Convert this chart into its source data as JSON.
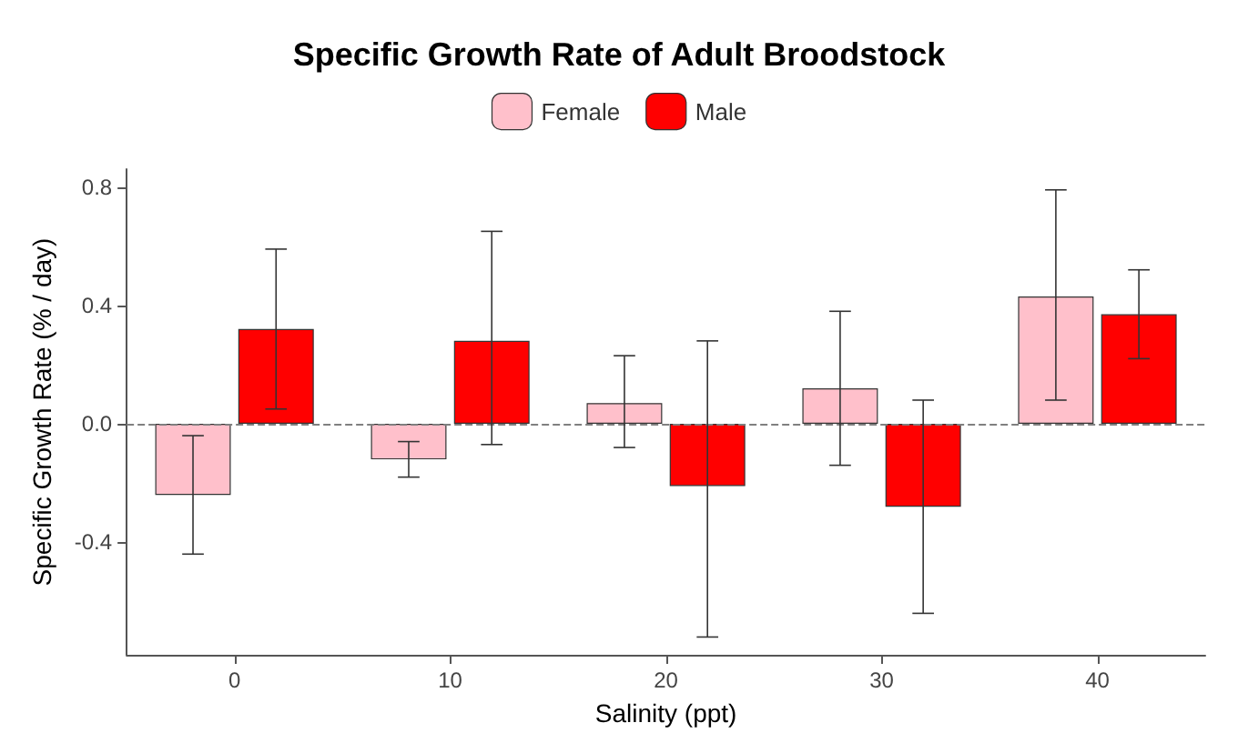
{
  "chart_data": {
    "type": "bar",
    "title": "Specific Growth Rate of Adult Broodstock",
    "xlabel": "Salinity (ppt)",
    "ylabel": "Specific Growth Rate (% / day)",
    "categories": [
      "0",
      "10",
      "20",
      "30",
      "40"
    ],
    "series": [
      {
        "name": "Female",
        "color": "#ffc0cb",
        "values": [
          -0.24,
          -0.12,
          0.07,
          0.12,
          0.43
        ],
        "errors": [
          [
            -0.44,
            -0.04
          ],
          [
            -0.18,
            -0.06
          ],
          [
            -0.08,
            0.23
          ],
          [
            -0.14,
            0.38
          ],
          [
            0.08,
            0.79
          ]
        ]
      },
      {
        "name": "Male",
        "color": "#ff0000",
        "values": [
          0.32,
          0.28,
          -0.21,
          -0.28,
          0.37
        ],
        "errors": [
          [
            0.05,
            0.59
          ],
          [
            -0.07,
            0.65
          ],
          [
            -0.72,
            0.28
          ],
          [
            -0.64,
            0.08
          ],
          [
            0.22,
            0.52
          ]
        ]
      }
    ],
    "ylim": [
      -0.78,
      0.86
    ],
    "yticks": [
      {
        "value": -0.4,
        "label": "-0.4"
      },
      {
        "value": 0,
        "label": "0.0"
      },
      {
        "value": 0.4,
        "label": "0.4"
      },
      {
        "value": 0.8,
        "label": "0.8"
      }
    ],
    "ref_lines": [
      {
        "axis": "y",
        "value": 0,
        "color": "#808080",
        "line_style": "dashed"
      }
    ],
    "grid": false,
    "legend": "top"
  }
}
